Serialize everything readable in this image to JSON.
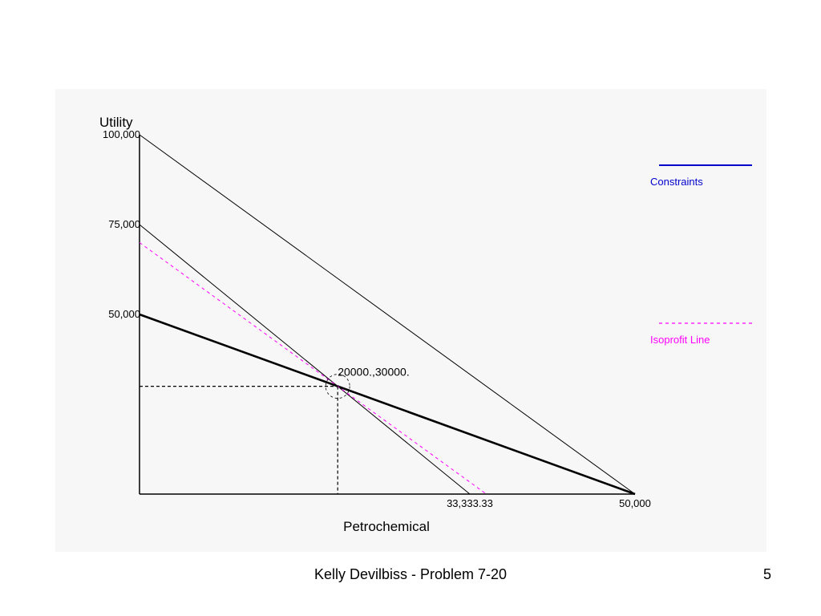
{
  "footer": {
    "text": "Kelly Devilbiss - Problem 7-20",
    "page_number": "5"
  },
  "chart_data": {
    "type": "line",
    "title": "",
    "xlabel": "Petrochemical",
    "ylabel": "Utility",
    "xlim": [
      0,
      50000
    ],
    "ylim": [
      0,
      100000
    ],
    "x_ticks": [
      {
        "value": 33333.33,
        "label": "33,333.33"
      },
      {
        "value": 50000,
        "label": "50,000"
      }
    ],
    "y_ticks": [
      {
        "value": 100000,
        "label": "100,000"
      },
      {
        "value": 75000,
        "label": "75,000"
      },
      {
        "value": 50000,
        "label": "50,000"
      }
    ],
    "grid": false,
    "series": [
      {
        "name": "Constraints",
        "style": "solid",
        "color": "#000000",
        "points": [
          [
            0,
            100000
          ],
          [
            50000,
            0
          ]
        ]
      },
      {
        "name": "Constraints",
        "style": "solid",
        "color": "#000000",
        "points": [
          [
            0,
            75000
          ],
          [
            33333.33,
            0
          ]
        ]
      },
      {
        "name": "Constraints",
        "style": "bold",
        "color": "#000000",
        "points": [
          [
            0,
            50000
          ],
          [
            50000,
            0
          ]
        ]
      },
      {
        "name": "Isoprofit Line",
        "style": "dashed",
        "color": "#ff00ff",
        "points": [
          [
            0,
            70000
          ],
          [
            35000,
            0
          ]
        ]
      }
    ],
    "optimal_point": {
      "x": 20000,
      "y": 30000,
      "label": "20000.,30000."
    },
    "legend": {
      "placement": "right",
      "entries": [
        {
          "label": "Constraints",
          "color": "#0000cc",
          "style": "solid"
        },
        {
          "label": "Isoprofit Line",
          "color": "#ff00ff",
          "style": "dashed"
        }
      ]
    }
  }
}
